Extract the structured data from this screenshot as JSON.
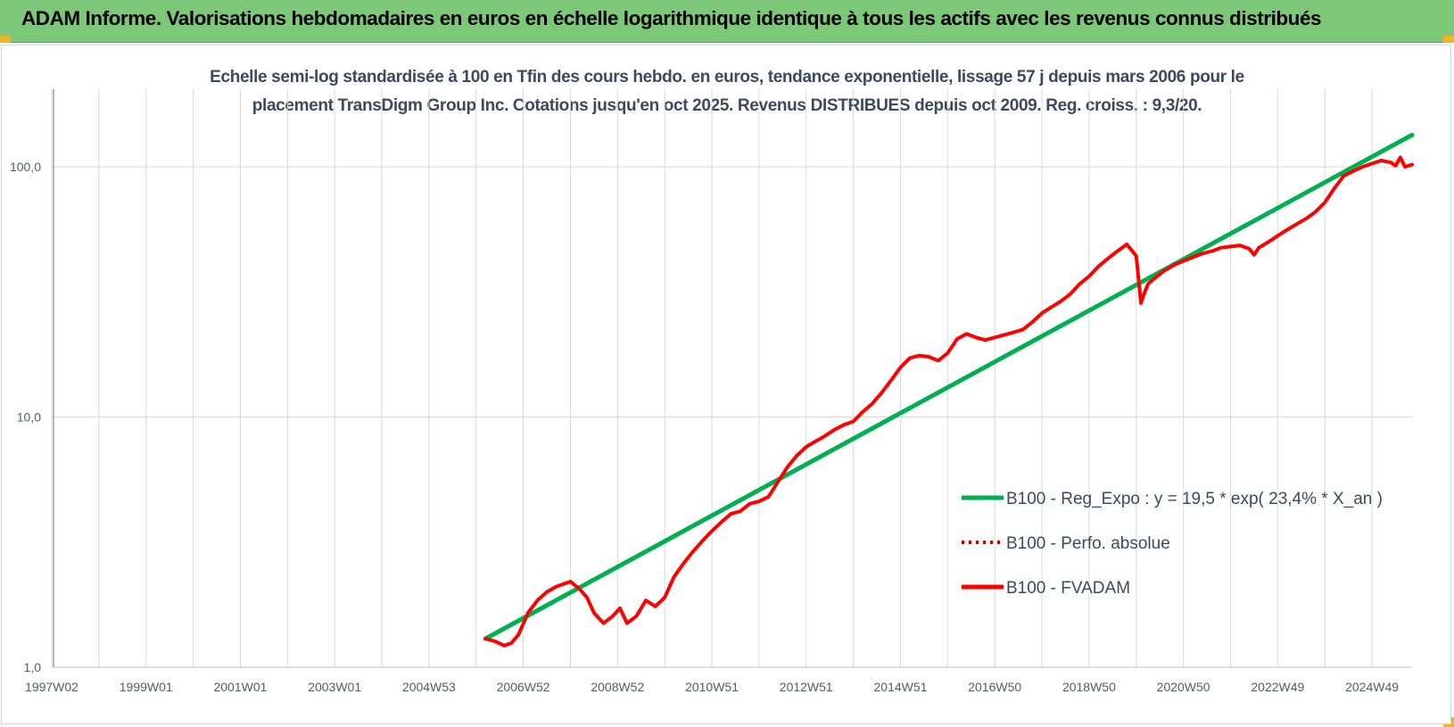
{
  "header": {
    "title": "ADAM Informe. Valorisations hebdomadaires en euros en échelle logarithmique identique à tous les actifs avec les revenus connus distribués"
  },
  "colors": {
    "banner": "#7dc878",
    "regression": "#00b050",
    "fvadam": "#ff0000",
    "perfo": "#c00000",
    "grid": "#d9d9d9",
    "title_text": "#3c4a5e"
  },
  "chart_data": {
    "type": "line",
    "title_line1": "Echelle semi-log standardisée à 100 en Tfin des cours hebdo. en euros, tendance exponentielle, lissage 57 j depuis mars 2006 pour le",
    "title_line2": "placement TransDigm Group Inc. Cotations jusqu'en oct 2025. Revenus DISTRIBUES depuis oct 2009. Reg. croiss. : 9,3/20.",
    "y_scale": "log",
    "ylim": [
      1,
      200
    ],
    "y_ticks": [
      {
        "value": 1,
        "label": "1,0"
      },
      {
        "value": 10,
        "label": "10,0"
      },
      {
        "value": 100,
        "label": "100,0"
      }
    ],
    "xlim": [
      1997.0,
      2025.85
    ],
    "x_ticks": [
      {
        "value": 1997.0,
        "label": "1997W02"
      },
      {
        "value": 1999.0,
        "label": "1999W01"
      },
      {
        "value": 2001.0,
        "label": "2001W01"
      },
      {
        "value": 2003.0,
        "label": "2003W01"
      },
      {
        "value": 2005.0,
        "label": "2004W53"
      },
      {
        "value": 2007.0,
        "label": "2006W52"
      },
      {
        "value": 2009.0,
        "label": "2008W52"
      },
      {
        "value": 2011.0,
        "label": "2010W51"
      },
      {
        "value": 2013.0,
        "label": "2012W51"
      },
      {
        "value": 2015.0,
        "label": "2014W51"
      },
      {
        "value": 2017.0,
        "label": "2016W50"
      },
      {
        "value": 2019.0,
        "label": "2018W50"
      },
      {
        "value": 2021.0,
        "label": "2020W50"
      },
      {
        "value": 2023.0,
        "label": "2022W49"
      },
      {
        "value": 2025.0,
        "label": "2024W49"
      }
    ],
    "grid": true,
    "legend_position": "right",
    "series": [
      {
        "name": "B100 - Reg_Expo : y = 19,5 * exp( 23,4% *  X_an )",
        "style": "solid",
        "x": [
          2006.2,
          2025.85
        ],
        "y": [
          1.3,
          134
        ]
      },
      {
        "name": "B100 - Perfo. absolue",
        "style": "dotted",
        "x": [],
        "y": []
      },
      {
        "name": "B100 - FVADAM",
        "style": "solid",
        "x": [
          2006.2,
          2006.4,
          2006.6,
          2006.75,
          2006.9,
          2007.1,
          2007.3,
          2007.5,
          2007.7,
          2007.85,
          2008.0,
          2008.2,
          2008.35,
          2008.5,
          2008.7,
          2008.9,
          2009.05,
          2009.2,
          2009.4,
          2009.6,
          2009.8,
          2010.0,
          2010.2,
          2010.4,
          2010.6,
          2010.8,
          2011.0,
          2011.2,
          2011.4,
          2011.6,
          2011.8,
          2012.0,
          2012.2,
          2012.4,
          2012.6,
          2012.8,
          2013.0,
          2013.2,
          2013.4,
          2013.6,
          2013.8,
          2014.0,
          2014.2,
          2014.4,
          2014.6,
          2014.8,
          2015.0,
          2015.2,
          2015.4,
          2015.6,
          2015.8,
          2016.0,
          2016.2,
          2016.4,
          2016.6,
          2016.8,
          2017.0,
          2017.2,
          2017.4,
          2017.6,
          2017.8,
          2018.0,
          2018.2,
          2018.4,
          2018.6,
          2018.8,
          2019.0,
          2019.2,
          2019.4,
          2019.6,
          2019.8,
          2020.0,
          2020.1,
          2020.15,
          2020.25,
          2020.4,
          2020.6,
          2020.8,
          2021.0,
          2021.2,
          2021.4,
          2021.6,
          2021.8,
          2022.0,
          2022.2,
          2022.4,
          2022.5,
          2022.6,
          2022.8,
          2023.0,
          2023.2,
          2023.4,
          2023.6,
          2023.8,
          2024.0,
          2024.2,
          2024.4,
          2024.6,
          2024.8,
          2025.0,
          2025.2,
          2025.4,
          2025.5,
          2025.6,
          2025.7,
          2025.85
        ],
        "y": [
          1.3,
          1.27,
          1.22,
          1.25,
          1.35,
          1.65,
          1.85,
          2.0,
          2.1,
          2.15,
          2.2,
          2.05,
          1.9,
          1.65,
          1.5,
          1.6,
          1.72,
          1.5,
          1.6,
          1.85,
          1.75,
          1.9,
          2.3,
          2.6,
          2.9,
          3.2,
          3.5,
          3.8,
          4.1,
          4.2,
          4.5,
          4.6,
          4.8,
          5.5,
          6.3,
          7.0,
          7.6,
          8.0,
          8.4,
          8.9,
          9.3,
          9.6,
          10.5,
          11.3,
          12.5,
          14.0,
          15.8,
          17.2,
          17.6,
          17.4,
          16.8,
          18.0,
          20.5,
          21.5,
          20.8,
          20.3,
          20.8,
          21.3,
          21.8,
          22.4,
          24.0,
          26.0,
          27.5,
          29.0,
          31.0,
          34.0,
          36.5,
          40.0,
          43.0,
          46.0,
          49.0,
          44.0,
          28.5,
          30.5,
          34.0,
          36.0,
          38.5,
          40.5,
          42.0,
          43.5,
          45.0,
          46.0,
          47.5,
          48.0,
          48.5,
          47.0,
          44.5,
          47.5,
          50.0,
          53.0,
          56.0,
          59.0,
          62.0,
          66.0,
          72.0,
          82.0,
          92.0,
          96.0,
          100.0,
          103.0,
          106.0,
          104.0,
          101.0,
          109.0,
          100.0,
          102.0
        ]
      }
    ]
  }
}
